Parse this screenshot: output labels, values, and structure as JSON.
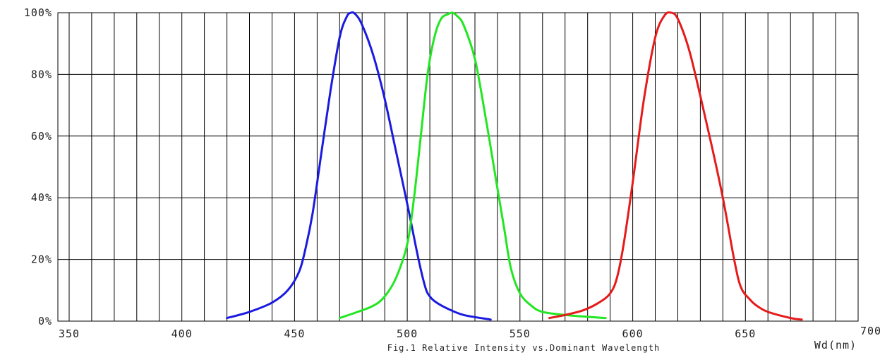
{
  "chart_data": {
    "type": "line",
    "title": "",
    "caption": "Fig.1 Relative Intensity vs.Dominant Wavelength",
    "xlabel": "Wd(nm)",
    "ylabel": "",
    "xlim": [
      345,
      700
    ],
    "ylim": [
      0,
      100
    ],
    "x_ticks": [
      "350",
      "400",
      "450",
      "500",
      "550",
      "600",
      "650",
      "700"
    ],
    "y_ticks": [
      "0%",
      "20%",
      "40%",
      "60%",
      "80%",
      "100%"
    ],
    "grid": true,
    "legend": "none",
    "series": [
      {
        "color": "#1a1ae0",
        "x": [
          420,
          430,
          440,
          447,
          452,
          455,
          458,
          462,
          466,
          470,
          473,
          475,
          477,
          480,
          485,
          490,
          495,
          500,
          505,
          508,
          510,
          513,
          518,
          525,
          537
        ],
        "y": [
          1,
          3,
          6,
          10,
          16,
          24,
          35,
          55,
          75,
          92,
          98.5,
          100,
          99.5,
          96,
          86,
          72,
          55,
          38,
          20,
          11,
          8,
          6,
          4,
          2,
          0.5
        ]
      },
      {
        "color": "#22e622",
        "x": [
          470,
          478,
          485,
          490,
          495,
          500,
          503,
          506,
          509,
          512,
          515,
          518,
          520,
          522,
          525,
          530,
          535,
          540,
          543,
          546,
          550,
          555,
          560,
          570,
          578,
          588
        ],
        "y": [
          1,
          3,
          5,
          8,
          14,
          25,
          40,
          60,
          80,
          92,
          98,
          99.5,
          100,
          99,
          96,
          85,
          65,
          43,
          30,
          17,
          9,
          5,
          3,
          2,
          1.5,
          1
        ]
      },
      {
        "color": "#e61a1a",
        "x": [
          563,
          570,
          578,
          585,
          590,
          593,
          596,
          600,
          605,
          610,
          614,
          617,
          620,
          625,
          630,
          635,
          640,
          645,
          648,
          652,
          655,
          660,
          670,
          675
        ],
        "y": [
          1,
          2,
          3.5,
          6,
          9,
          14,
          25,
          45,
          72,
          92,
          99,
          100,
          98,
          88,
          73,
          57,
          40,
          20,
          11,
          7,
          5,
          3,
          1,
          0.5
        ]
      }
    ]
  }
}
